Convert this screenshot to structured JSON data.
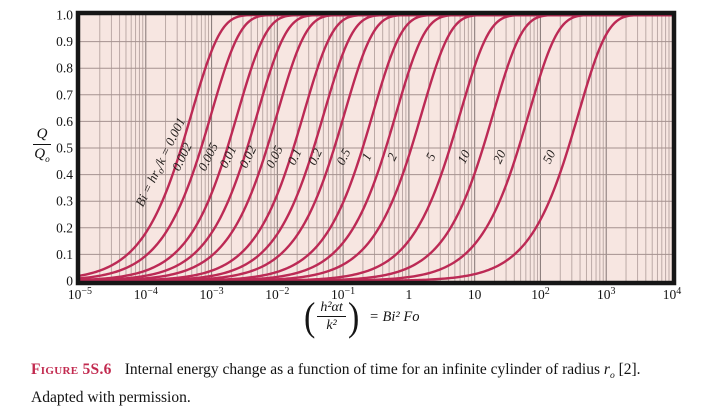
{
  "caption": {
    "label": "Figure 5S.6",
    "text1": "Internal energy change as a function of time for an infinite cylinder of radius ",
    "r_symbol": "r",
    "r_subscript": "o",
    "text2": " [2]. Adapted with permission."
  },
  "chart_data": {
    "type": "line",
    "title": "",
    "ylabel": {
      "numerator": "Q",
      "denominator": "Q",
      "denominator_sub": "o"
    },
    "xlabel_formula": {
      "open": "(",
      "numerator": "h²αt",
      "denominator": "k²",
      "close": ")",
      "rhs": "= Bi² Fo"
    },
    "x_axis": {
      "scale": "log",
      "min": 1e-05,
      "max": 10000.0,
      "ticks": [
        {
          "value": 1e-05,
          "label": "10^-5"
        },
        {
          "value": 0.0001,
          "label": "10^-4"
        },
        {
          "value": 0.001,
          "label": "10^-3"
        },
        {
          "value": 0.01,
          "label": "10^-2"
        },
        {
          "value": 0.1,
          "label": "10^-1"
        },
        {
          "value": 1,
          "label": "1"
        },
        {
          "value": 10,
          "label": "10"
        },
        {
          "value": 100.0,
          "label": "10^2"
        },
        {
          "value": 1000.0,
          "label": "10^3"
        },
        {
          "value": 10000.0,
          "label": "10^4"
        }
      ]
    },
    "y_axis": {
      "min": 0,
      "max": 1,
      "ticks": [
        {
          "value": 1.0,
          "label": "1.0"
        },
        {
          "value": 0.9,
          "label": "0.9"
        },
        {
          "value": 0.8,
          "label": "0.8"
        },
        {
          "value": 0.7,
          "label": "0.7"
        },
        {
          "value": 0.6,
          "label": "0.6"
        },
        {
          "value": 0.5,
          "label": "0.5"
        },
        {
          "value": 0.4,
          "label": "0.4"
        },
        {
          "value": 0.3,
          "label": "0.3"
        },
        {
          "value": 0.2,
          "label": "0.2"
        },
        {
          "value": 0.1,
          "label": "0.1"
        },
        {
          "value": 0,
          "label": "0"
        }
      ]
    },
    "curve_model": {
      "description": "Q/Qo = 1 - exp(-x/tau), tau = Bi/linear_divisor + Bi^2/quadratic_divisor, x = Bi^2*Fo",
      "linear_divisor": 2,
      "quadratic_divisor": 7
    },
    "series": [
      {
        "bi": 0.001,
        "label": "Bi = hr_o/k = 0.001",
        "x_at_half": 0.00035
      },
      {
        "bi": 0.002,
        "label": "0.002",
        "x_at_half": 0.00069
      },
      {
        "bi": 0.005,
        "label": "0.005",
        "x_at_half": 0.0017
      },
      {
        "bi": 0.01,
        "label": "0.01",
        "x_at_half": 0.0035
      },
      {
        "bi": 0.02,
        "label": "0.02",
        "x_at_half": 0.007
      },
      {
        "bi": 0.05,
        "label": "0.05",
        "x_at_half": 0.018
      },
      {
        "bi": 0.1,
        "label": "0.1",
        "x_at_half": 0.036
      },
      {
        "bi": 0.2,
        "label": "0.2",
        "x_at_half": 0.073
      },
      {
        "bi": 0.5,
        "label": "0.5",
        "x_at_half": 0.2
      },
      {
        "bi": 1,
        "label": "1",
        "x_at_half": 0.45
      },
      {
        "bi": 2,
        "label": "2",
        "x_at_half": 1.1
      },
      {
        "bi": 5,
        "label": "5",
        "x_at_half": 4.2
      },
      {
        "bi": 10,
        "label": "10",
        "x_at_half": 13
      },
      {
        "bi": 20,
        "label": "20",
        "x_at_half": 47
      },
      {
        "bi": 50,
        "label": "50",
        "x_at_half": 265
      }
    ],
    "colors": {
      "curve": "#bc2a55",
      "plot_bg": "#f7e6e1",
      "frame": "#161616",
      "grid_major_vertical": "#8d7f7d",
      "grid_minor_vertical": "#b5a3a0",
      "grid_horizontal": "#a5928f",
      "tick_text": "#141414",
      "curve_label_text": "#26211f",
      "caption_label": "#c22a4f"
    }
  }
}
